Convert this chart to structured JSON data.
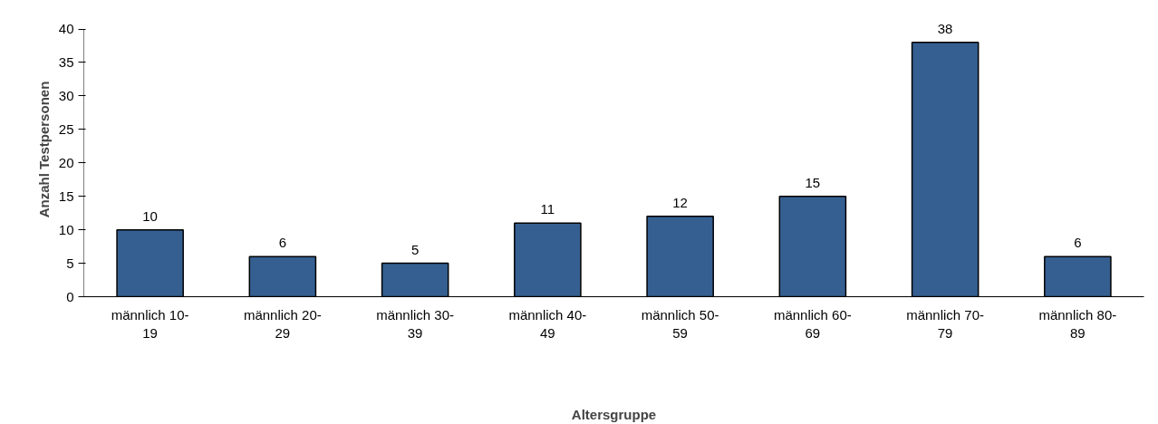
{
  "chart_data": {
    "type": "bar",
    "xlabel": "Altersgruppe",
    "ylabel": "Anzahl Testpersonen",
    "categories": [
      "männlich 10-19",
      "männlich 20-29",
      "männlich 30-39",
      "männlich 40-49",
      "männlich 50-59",
      "männlich 60-69",
      "männlich 70-79",
      "männlich 80-89"
    ],
    "values": [
      10,
      6,
      5,
      11,
      12,
      15,
      38,
      6
    ],
    "color": "#355f91",
    "ylim": [
      0,
      40
    ],
    "yticks": [
      0,
      5,
      10,
      15,
      20,
      25,
      30,
      35,
      40
    ],
    "grid": false,
    "data_labels": true
  }
}
